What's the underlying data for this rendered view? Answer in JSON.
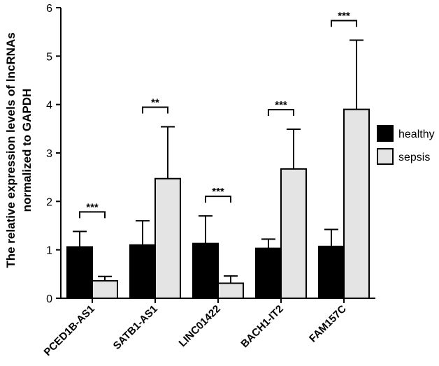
{
  "chart_data": {
    "type": "bar",
    "title": "",
    "xlabel": "",
    "ylabel_lines": [
      "The relative expression levels of lncRNAs",
      "normalized to GAPDH"
    ],
    "ylim": [
      0,
      6
    ],
    "yticks": [
      "0",
      "1",
      "2",
      "3",
      "4",
      "5",
      "6"
    ],
    "categories": [
      "PCED1B-AS1",
      "SATB1-AS1",
      "LINC01422",
      "BACH1-IT2",
      "FAM157C"
    ],
    "series": [
      {
        "name": "healthy",
        "color": "#000000",
        "values": [
          1.06,
          1.1,
          1.13,
          1.03,
          1.07
        ],
        "errors": [
          0.32,
          0.5,
          0.57,
          0.19,
          0.35
        ]
      },
      {
        "name": "sepsis",
        "color": "#e4e4e4",
        "values": [
          0.36,
          2.47,
          0.31,
          2.67,
          3.9
        ],
        "errors": [
          0.09,
          1.07,
          0.15,
          0.82,
          1.43
        ]
      }
    ],
    "significance": [
      "***",
      "**",
      "***",
      "***",
      "***"
    ],
    "legend_position": "right",
    "grid": false
  }
}
